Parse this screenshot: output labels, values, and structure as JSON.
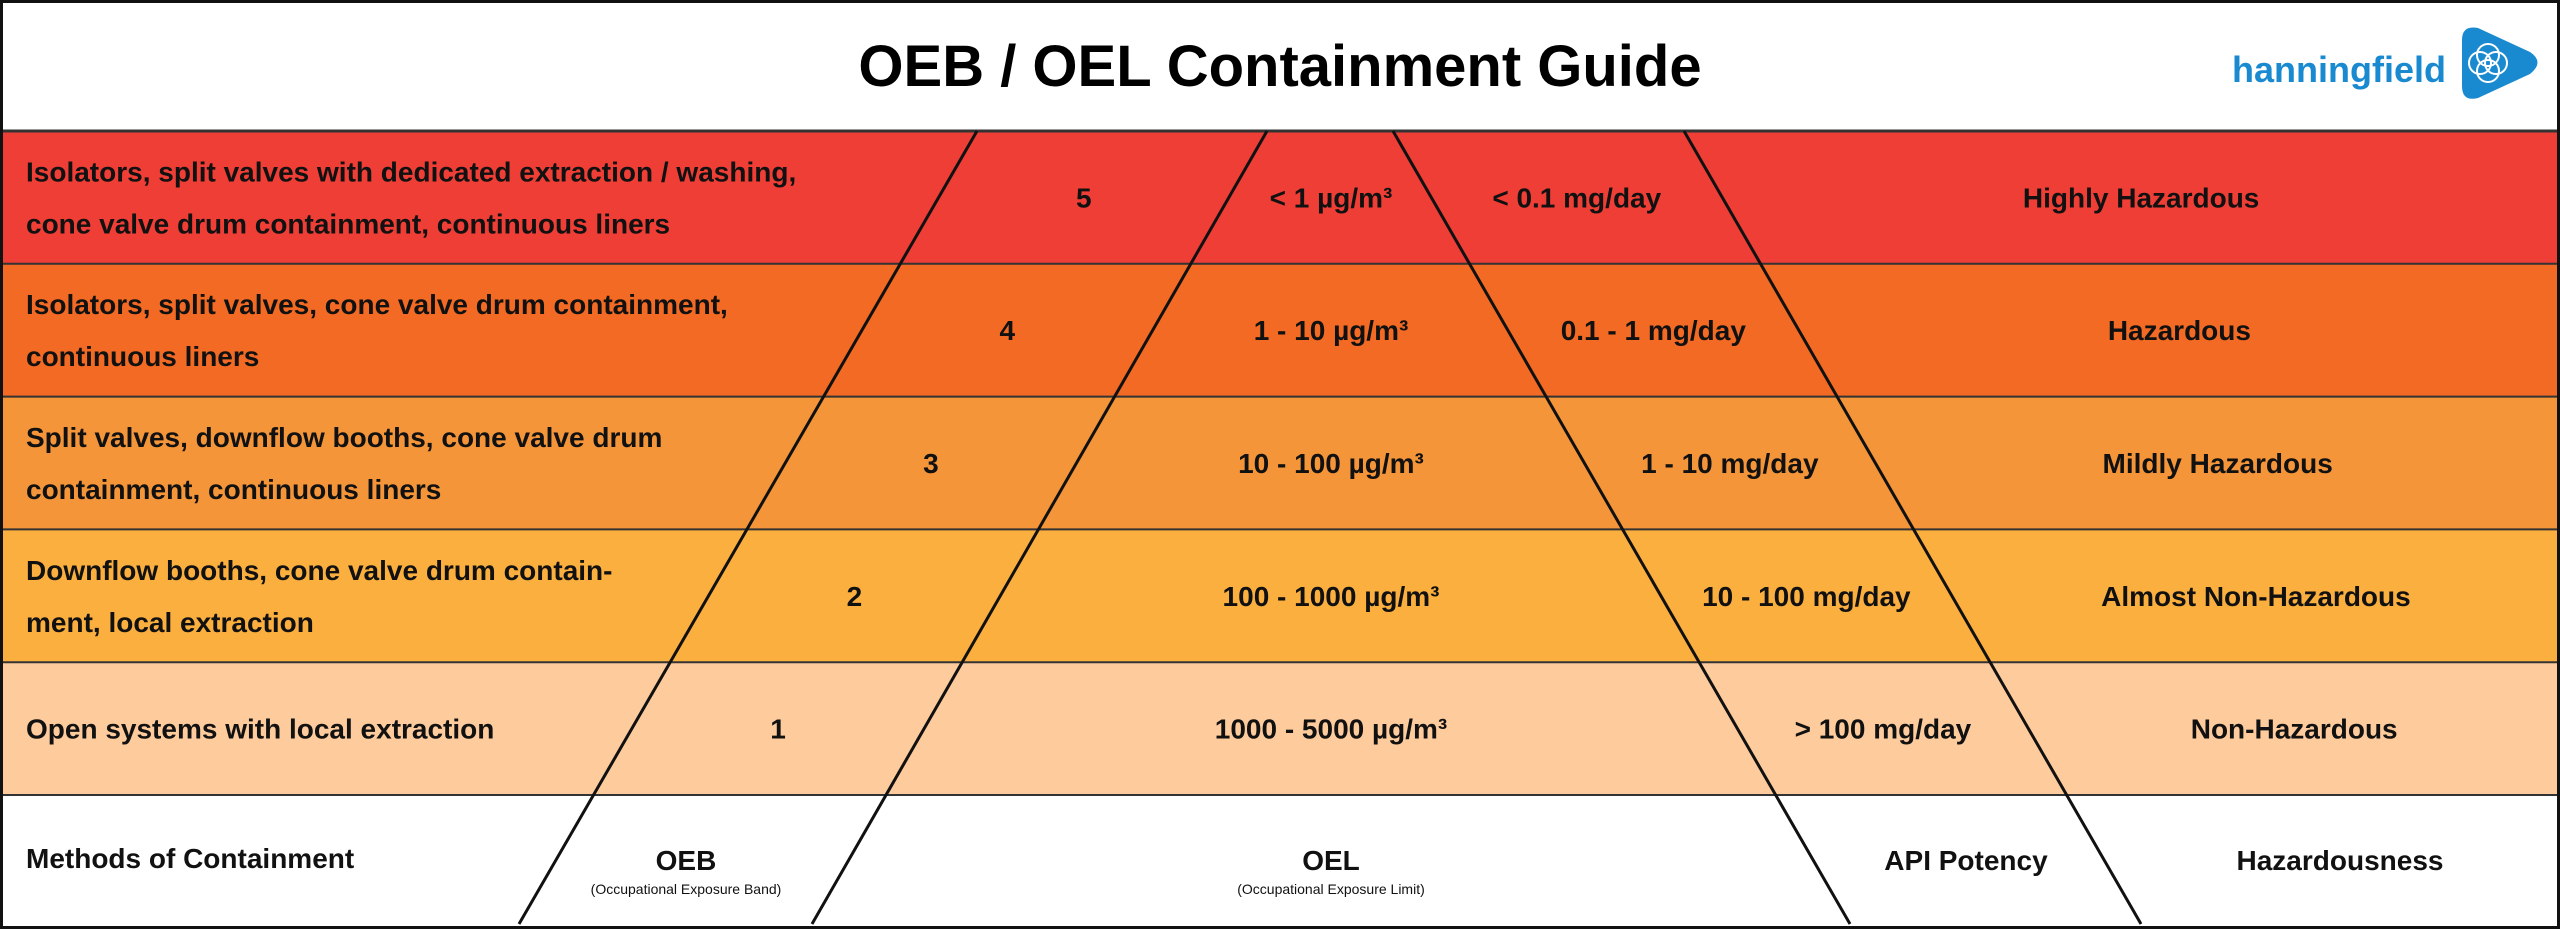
{
  "title": "OEB / OEL Containment Guide",
  "logo": {
    "text": "hanningfield",
    "color": "#1a8ad0",
    "icon": "flower-of-life-icon"
  },
  "rows": [
    {
      "color": "#ee3e36",
      "method_lines": [
        "Isolators, split valves with dedicated extraction / washing,",
        "cone valve drum containment, continuous liners"
      ],
      "oeb": "5",
      "oel": "< 1 µg/m³",
      "api": "< 0.1 mg/day",
      "hazard": "Highly Hazardous"
    },
    {
      "color": "#f26a24",
      "method_lines": [
        "Isolators, split valves, cone valve drum containment,",
        "continuous liners"
      ],
      "oeb": "4",
      "oel": "1 - 10 µg/m³",
      "api": "0.1 - 1 mg/day",
      "hazard": "Hazardous"
    },
    {
      "color": "#f5953a",
      "method_lines": [
        "Split valves, downflow booths, cone valve drum",
        "containment, continuous liners"
      ],
      "oeb": "3",
      "oel": "10 - 100 µg/m³",
      "api": "1 - 10 mg/day",
      "hazard": "Mildly Hazardous"
    },
    {
      "color": "#fbaf3f",
      "method_lines": [
        "Downflow booths, cone valve drum contain-",
        "ment, local extraction"
      ],
      "oeb": "2",
      "oel": "100 - 1000 µg/m³",
      "api": "10 - 100 mg/day",
      "hazard": "Almost Non-Hazardous"
    },
    {
      "color": "#fdcb9c",
      "method_lines": [
        "Open systems with local extraction"
      ],
      "oeb": "1",
      "oel": "1000 - 5000 µg/m³",
      "api": "> 100 mg/day",
      "hazard": "Non-Hazardous"
    }
  ],
  "footer": {
    "methods": "Methods of Containment",
    "oeb": "OEB",
    "oeb_sub": "(Occupational Exposure Band)",
    "oel": "OEL",
    "oel_sub": "(Occupational Exposure Limit)",
    "api": "API Potency",
    "hazard": "Hazardousness"
  }
}
